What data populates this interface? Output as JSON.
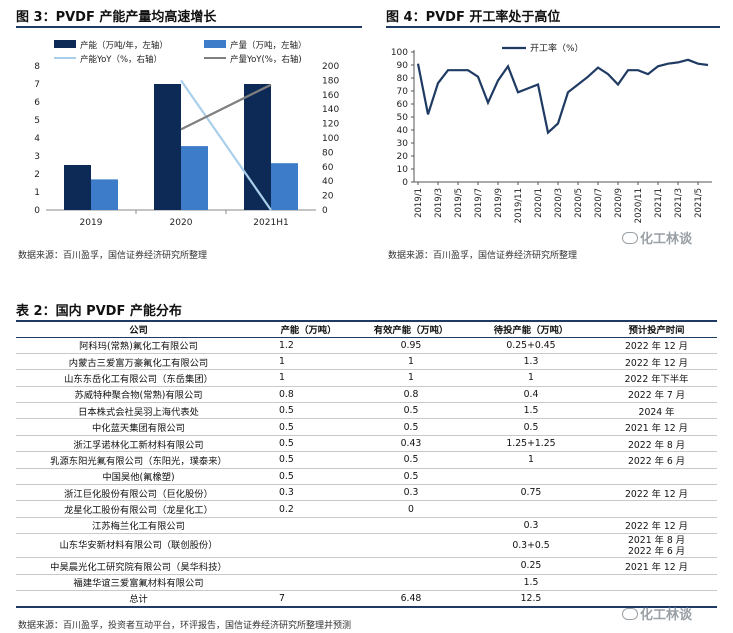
{
  "fig3": {
    "title": "图 3：PVDF 产能产量均高速增长",
    "source": "数据来源：百川盈孚，国信证券经济研究所整理",
    "legend": {
      "capacity": "产能（万吨/年，左轴）",
      "production": "产量（万吨，左轴）",
      "capacity_yoy": "产能YoY（%，右轴）",
      "production_yoy": "产量YoY(%，右轴)"
    },
    "colors": {
      "capacity": "#0c2a55",
      "production": "#3d7cc9",
      "capacity_yoy": "#a9cfea",
      "production_yoy": "#7f7f7f"
    }
  },
  "fig4": {
    "title": "图 4：PVDF 开工率处于高位",
    "source": "数据来源：百川盈孚，国信证券经济研究所整理",
    "legend": "开工率（%）",
    "color": "#1f3b63"
  },
  "table2": {
    "title": "表 2：国内 PVDF 产能分布",
    "headers": [
      "公司",
      "产能（万吨）",
      "有效产能（万吨）",
      "待投产能（万吨）",
      "预计投产时间"
    ],
    "rows": [
      [
        "阿科玛(常熟)氟化工有限公司",
        "1.2",
        "0.95",
        "0.25+0.45",
        "2022 年 12 月"
      ],
      [
        "内蒙古三爱富万豪氟化工有限公司",
        "1",
        "1",
        "1.3",
        "2022 年 12 月"
      ],
      [
        "山东东岳化工有限公司（东岳集团）",
        "1",
        "1",
        "1",
        "2022 年下半年"
      ],
      [
        "苏威特种聚合物(常熟)有限公司",
        "0.8",
        "0.8",
        "0.4",
        "2022 年 7 月"
      ],
      [
        "日本株式会社吴羽上海代表处",
        "0.5",
        "0.5",
        "1.5",
        "2024 年"
      ],
      [
        "中化蓝天集团有限公司",
        "0.5",
        "0.5",
        "0.5",
        "2021 年 12 月"
      ],
      [
        "浙江孚诺林化工新材料有限公司",
        "0.5",
        "0.43",
        "1.25+1.25",
        "2022 年 8 月"
      ],
      [
        "乳源东阳光氟有限公司（东阳光，璞泰来）",
        "0.5",
        "0.5",
        "1",
        "2022 年 6 月"
      ],
      [
        "中国昊他(氟橡塑)",
        "0.5",
        "0.5",
        "",
        ""
      ],
      [
        "浙江巨化股份有限公司（巨化股份）",
        "0.3",
        "0.3",
        "0.75",
        "2022 年 12 月"
      ],
      [
        "龙星化工股份有限公司（龙星化工）",
        "0.2",
        "0",
        "",
        ""
      ],
      [
        "江苏梅兰化工有限公司",
        "",
        "",
        "0.3",
        "2022 年 12 月"
      ],
      [
        "山东华安新材料有限公司（联创股份）",
        "",
        "",
        "0.3+0.5",
        "2021 年 8 月\n2022 年 6 月"
      ],
      [
        "中昊晨光化工研究院有限公司（昊华科技）",
        "",
        "",
        "0.25",
        "2021 年 12 月"
      ],
      [
        "福建华谊三爱富氟材料有限公司",
        "",
        "",
        "1.5",
        ""
      ],
      [
        "总计",
        "7",
        "6.48",
        "12.5",
        ""
      ]
    ],
    "source": "数据来源：百川盈孚，投资者互动平台，环评报告，国信证券经济研究所整理并预测"
  },
  "watermark": {
    "text": "化工林谈"
  },
  "chart_data": [
    {
      "type": "bar",
      "title": "图 3：PVDF 产能产量均高速增长",
      "categories": [
        "2019",
        "2020",
        "2021H1"
      ],
      "series": [
        {
          "name": "产能（万吨/年，左轴）",
          "axis": "left",
          "values": [
            2.5,
            7,
            7
          ]
        },
        {
          "name": "产量（万吨，左轴）",
          "axis": "left",
          "values": [
            1.7,
            3.55,
            2.6
          ]
        },
        {
          "name": "产能YoY（%，右轴）",
          "axis": "right",
          "type": "line",
          "values": [
            null,
            180,
            0
          ]
        },
        {
          "name": "产量YoY(%，右轴)",
          "axis": "right",
          "type": "line",
          "values": [
            null,
            112,
            174
          ]
        }
      ],
      "ylim_left": [
        0,
        8
      ],
      "yticks_left": [
        "0",
        "1",
        "2",
        "3",
        "4",
        "5",
        "6",
        "7",
        "8"
      ],
      "ylim_right": [
        0,
        200
      ],
      "yticks_right": [
        "0",
        "20",
        "40",
        "60",
        "80",
        "100",
        "120",
        "140",
        "160",
        "180",
        "200"
      ],
      "legend": "top"
    },
    {
      "type": "line",
      "title": "图 4：PVDF 开工率处于高位",
      "series": [
        {
          "name": "开工率（%）",
          "x": [
            "2019/1",
            "2019/2",
            "2019/3",
            "2019/4",
            "2019/5",
            "2019/6",
            "2019/7",
            "2019/8",
            "2019/9",
            "2019/10",
            "2019/11",
            "2019/12",
            "2020/1",
            "2020/2",
            "2020/3",
            "2020/4",
            "2020/5",
            "2020/6",
            "2020/7",
            "2020/8",
            "2020/9",
            "2020/10",
            "2020/11",
            "2020/12",
            "2021/1",
            "2021/2",
            "2021/3",
            "2021/4",
            "2021/5",
            "2021/6"
          ],
          "values": [
            91,
            52,
            76,
            86,
            86,
            86,
            81,
            61,
            78,
            89,
            69,
            72,
            75,
            38,
            45,
            69,
            75,
            81,
            88,
            83,
            75,
            86,
            86,
            83,
            89,
            91,
            92,
            94,
            91,
            90
          ]
        }
      ],
      "xticks": [
        "2019/1",
        "2019/3",
        "2019/5",
        "2019/7",
        "2019/9",
        "2019/11",
        "2020/1",
        "2020/3",
        "2020/5",
        "2020/7",
        "2020/9",
        "2020/11",
        "2021/1",
        "2021/3",
        "2021/5"
      ],
      "ylim": [
        0,
        100
      ],
      "yticks": [
        "0",
        "10",
        "20",
        "30",
        "40",
        "50",
        "60",
        "70",
        "80",
        "90",
        "100"
      ],
      "legend": "top-left"
    }
  ]
}
